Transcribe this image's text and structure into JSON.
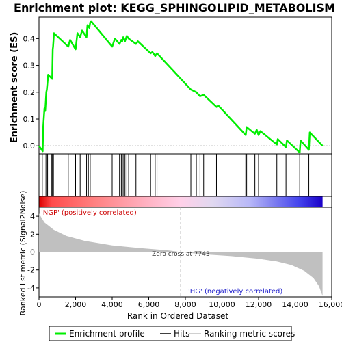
{
  "chart_data": {
    "type": "line",
    "title": "Enrichment plot: KEGG_SPHINGOLIPID_METABOLISM",
    "xlabel": "Rank in Ordered Dataset",
    "xlim": [
      0,
      16000
    ],
    "xticks": [
      0,
      2000,
      4000,
      6000,
      8000,
      10000,
      12000,
      14000,
      16000
    ],
    "xtick_labels": [
      "0",
      "2,000",
      "4,000",
      "6,000",
      "8,000",
      "10,000",
      "12,000",
      "14,000",
      "16,000"
    ],
    "es_panel": {
      "ylabel": "Enrichment score (ES)",
      "ylim": [
        -0.03,
        0.48
      ],
      "yticks": [
        0.0,
        0.1,
        0.2,
        0.3,
        0.4
      ],
      "ytick_labels": [
        "0.0",
        "0.1",
        "0.2",
        "0.3",
        "0.4"
      ],
      "grid": false,
      "color": "#00ee00",
      "series": {
        "name": "Enrichment profile",
        "x": [
          0,
          200,
          230,
          300,
          340,
          400,
          430,
          500,
          720,
          750,
          770,
          820,
          1600,
          1700,
          2000,
          2100,
          2250,
          2350,
          2600,
          2650,
          2750,
          2800,
          2850,
          4000,
          4150,
          4400,
          4500,
          4550,
          4600,
          4700,
          4800,
          4900,
          5300,
          5400,
          6100,
          6200,
          6350,
          6450,
          8300,
          8600,
          8800,
          9000,
          9700,
          9800,
          11300,
          11350,
          11800,
          11900,
          12000,
          12100,
          13000,
          13050,
          13500,
          13550,
          14250,
          14300,
          14750,
          14800,
          15500
        ],
        "y": [
          0.0,
          -0.02,
          0.07,
          0.14,
          0.13,
          0.2,
          0.21,
          0.265,
          0.25,
          0.36,
          0.37,
          0.42,
          0.37,
          0.395,
          0.36,
          0.42,
          0.405,
          0.43,
          0.405,
          0.45,
          0.44,
          0.46,
          0.465,
          0.37,
          0.4,
          0.38,
          0.395,
          0.39,
          0.405,
          0.39,
          0.41,
          0.4,
          0.38,
          0.39,
          0.345,
          0.35,
          0.335,
          0.345,
          0.21,
          0.2,
          0.185,
          0.19,
          0.145,
          0.15,
          0.04,
          0.07,
          0.045,
          0.06,
          0.04,
          0.055,
          0.005,
          0.025,
          -0.005,
          0.02,
          -0.025,
          0.02,
          -0.015,
          0.05,
          0.0
        ]
      }
    },
    "hits": [
      180,
      280,
      380,
      470,
      700,
      740,
      790,
      1600,
      2000,
      2250,
      2600,
      2700,
      2800,
      4000,
      4400,
      4500,
      4600,
      4700,
      4800,
      4900,
      5300,
      6100,
      6350,
      6450,
      8300,
      8600,
      8800,
      9000,
      9700,
      11300,
      11350,
      11800,
      12000,
      13000,
      13500,
      14250,
      14750
    ],
    "color_bar": {
      "stops": [
        {
          "rank": 0,
          "color": "#dd0000"
        },
        {
          "rank": 700,
          "color": "#ff4c4c"
        },
        {
          "rank": 3000,
          "color": "#ff8080"
        },
        {
          "rank": 5800,
          "color": "#ffb0c0"
        },
        {
          "rank": 7743,
          "color": "#ffd0e8"
        },
        {
          "rank": 9500,
          "color": "#e0d8f0"
        },
        {
          "rank": 11500,
          "color": "#b8b8f8"
        },
        {
          "rank": 12800,
          "color": "#8080f0"
        },
        {
          "rank": 14200,
          "color": "#4444ee"
        },
        {
          "rank": 15500,
          "color": "#1a00c8"
        }
      ]
    },
    "metric_panel": {
      "ylabel": "Ranked list metric (Signal2Noise)",
      "ylim": [
        -5,
        5
      ],
      "yticks": [
        -4,
        -2,
        0,
        2,
        4
      ],
      "ytick_labels": [
        "-4",
        "-2",
        "0",
        "2",
        "4"
      ],
      "fill_color": "#c0c0c0",
      "x": [
        0,
        300,
        800,
        1500,
        2500,
        4000,
        5500,
        7000,
        7743,
        9000,
        10500,
        12000,
        13000,
        13800,
        14500,
        15000,
        15300,
        15500
      ],
      "y": [
        4.3,
        3.3,
        2.5,
        1.8,
        1.25,
        0.75,
        0.45,
        0.2,
        0.0,
        -0.25,
        -0.45,
        -0.75,
        -1.05,
        -1.45,
        -2.1,
        -2.9,
        -3.8,
        -4.9
      ],
      "label_pos": "'NGP' (positively correlated)",
      "label_neg": "'HG' (negatively correlated)",
      "zero_cross_label": "Zero cross at 7743",
      "zero_cross": 7743
    },
    "legend": {
      "placement": "bottom",
      "entries": [
        {
          "label": "Enrichment profile",
          "color": "#00ee00"
        },
        {
          "label": "Hits",
          "color": "#000000"
        },
        {
          "label": "Ranking metric scores",
          "color": "#c0c0c0"
        }
      ]
    }
  }
}
